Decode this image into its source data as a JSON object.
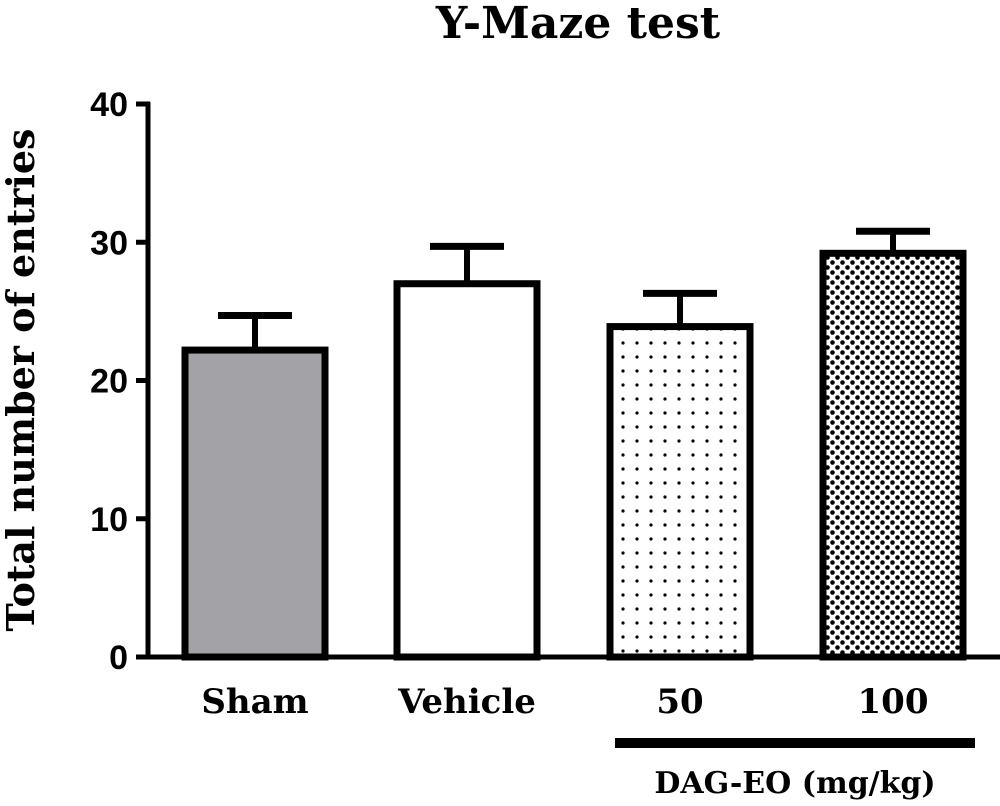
{
  "chart_data": {
    "type": "bar",
    "title": "Y-Maze test",
    "xlabel": "",
    "ylabel": "Total number of entries",
    "ylim": [
      0,
      40
    ],
    "yticks": [
      0,
      10,
      20,
      30,
      40
    ],
    "categories": [
      "Sham",
      "Vehicle",
      "50",
      "100"
    ],
    "values": [
      22.2,
      27.0,
      23.9,
      29.2
    ],
    "error": [
      2.5,
      2.7,
      2.4,
      1.6
    ],
    "fills": [
      "gray",
      "white",
      "sparse-dots",
      "dense-dots"
    ],
    "group": {
      "label": "DAG-EO (mg/kg)",
      "categories": [
        "50",
        "100"
      ]
    },
    "grid": false,
    "legend": "none"
  }
}
